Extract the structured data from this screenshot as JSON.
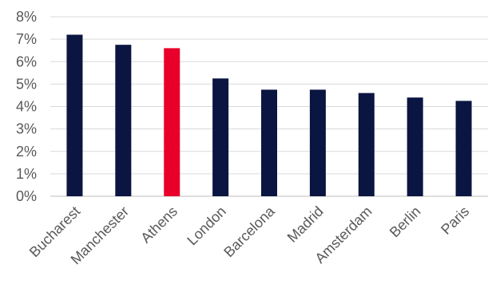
{
  "chart_data": {
    "type": "bar",
    "categories": [
      "Bucharest",
      "Manchester",
      "Athens",
      "London",
      "Barcelona",
      "Madrid",
      "Amsterdam",
      "Berlin",
      "Paris"
    ],
    "values": [
      7.2,
      6.75,
      6.6,
      5.25,
      4.75,
      4.75,
      4.6,
      4.4,
      4.25
    ],
    "y_ticks": [
      "0%",
      "1%",
      "2%",
      "3%",
      "4%",
      "5%",
      "6%",
      "7%",
      "8%"
    ],
    "ylim": [
      0,
      8
    ],
    "grid": true,
    "legend": "none",
    "colors": {
      "default_bar": "#0b1541",
      "highlight_bar": "#e8002a",
      "highlight_category": "Athens",
      "grid": "#d9d9d9",
      "text": "#595959"
    }
  }
}
